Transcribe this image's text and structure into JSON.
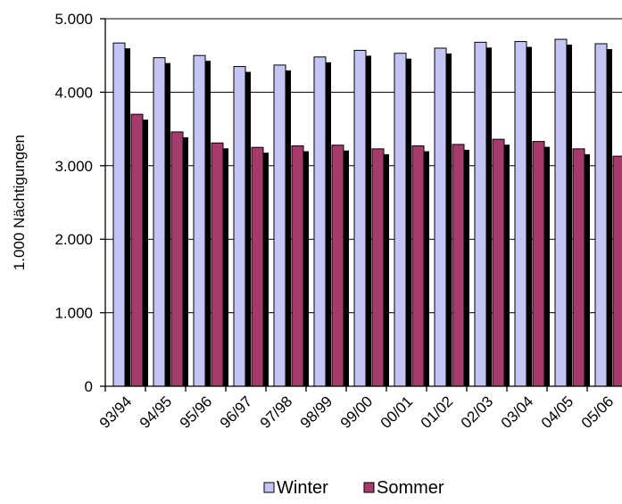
{
  "chart_data": {
    "type": "bar",
    "title": "",
    "xlabel": "",
    "ylabel": "1.000 Nächtigungen",
    "ylim": [
      0,
      5000
    ],
    "yticks": [
      0,
      1000,
      2000,
      3000,
      4000,
      5000
    ],
    "ytick_labels": [
      "0",
      "1.000",
      "2.000",
      "3.000",
      "4.000",
      "5.000"
    ],
    "grid": true,
    "legend_position": "bottom",
    "categories": [
      "93/94",
      "94/95",
      "95/96",
      "96/97",
      "97/98",
      "98/99",
      "99/00",
      "00/01",
      "01/02",
      "02/03",
      "03/04",
      "04/05",
      "05/06"
    ],
    "series": [
      {
        "name": "Winter",
        "color": "#c5c5f5",
        "values": [
          4670,
          4470,
          4500,
          4350,
          4370,
          4480,
          4570,
          4530,
          4600,
          4680,
          4690,
          4720,
          4660
        ]
      },
      {
        "name": "Sommer",
        "color": "#a63a6b",
        "values": [
          3700,
          3460,
          3310,
          3250,
          3270,
          3280,
          3230,
          3270,
          3290,
          3360,
          3330,
          3230,
          3130
        ]
      }
    ]
  }
}
